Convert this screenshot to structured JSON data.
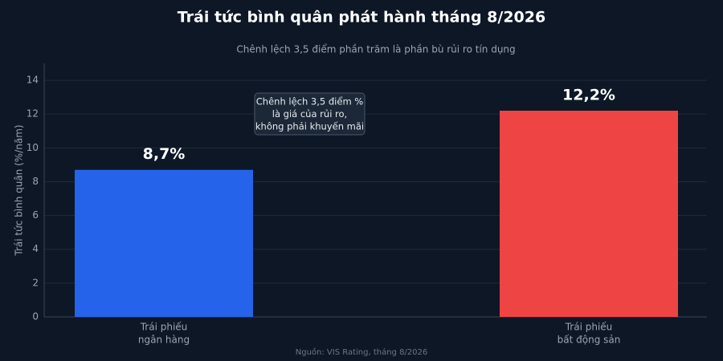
{
  "chart_data": {
    "type": "bar",
    "title": "Trái tức bình quân phát hành tháng 8/2026",
    "subtitle": "Chênh lệch 3,5 điểm phần trăm là phần bù rủi ro tín dụng",
    "y_label": "Trái tức bình quân (%/năm)",
    "source": "Nguồn: VIS Rating, tháng 8/2026",
    "categories": [
      [
        "Trái phiếu",
        "ngân hàng"
      ],
      [
        "Trái phiếu",
        "bất động sản"
      ]
    ],
    "values": [
      8.7,
      12.2
    ],
    "value_labels": [
      "8,7%",
      "12,2%"
    ],
    "colors": [
      "#2563eb",
      "#ef4444"
    ],
    "annotation": [
      "Chênh lệch 3,5 điểm %",
      "là giá của rủi ro,",
      "không phải khuyến mãi"
    ],
    "ylim": [
      0,
      15
    ],
    "yticks": [
      0,
      2,
      4,
      6,
      8,
      10,
      12,
      14
    ],
    "grid": true
  }
}
